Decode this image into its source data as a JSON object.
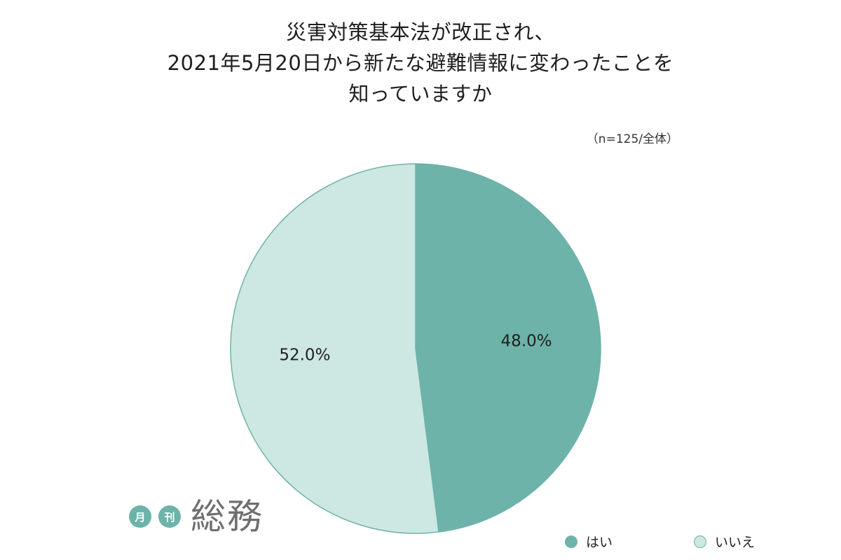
{
  "title_lines": [
    "災害対策基本法が改正され、",
    "2021年5月20日から新たな避難情報に変わったことを",
    "知っていますか"
  ],
  "sample_note": "（n=125/全体）",
  "logo": {
    "badge1": "月",
    "badge2": "刊",
    "name": "総務"
  },
  "colors": {
    "yes": "#6db3aa",
    "no": "#cde7e3",
    "stroke": "#6db3aa"
  },
  "chart_data": {
    "type": "pie",
    "title": "災害対策基本法が改正され、2021年5月20日から新たな避難情報に変わったことを知っていますか",
    "slices": [
      {
        "label": "はい",
        "value": 48.0,
        "display": "48.0%"
      },
      {
        "label": "いいえ",
        "value": 52.0,
        "display": "52.0%"
      }
    ],
    "legend_position": "bottom-right"
  }
}
